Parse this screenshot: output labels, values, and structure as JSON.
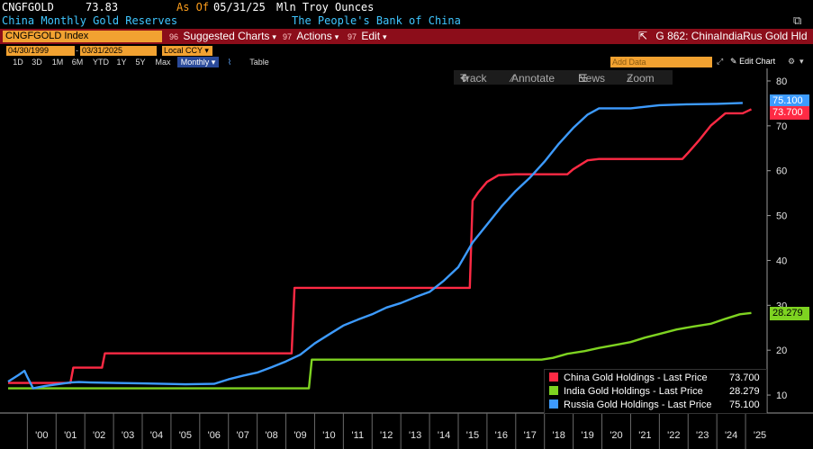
{
  "header": {
    "ticker": "CNGFGOLD",
    "last_value": "73.83",
    "asof_label": "As Of",
    "asof_date": "05/31/25",
    "units": "Mln Troy Ounces",
    "description": "China Monthly Gold Reserves",
    "source": "The People's Bank of China"
  },
  "menubar": {
    "index_label": "CNGFGOLD Index",
    "suggested": "Suggested Charts",
    "suggested_num": "96",
    "actions": "Actions",
    "actions_num": "97",
    "edit": "Edit",
    "chart_title": "G 862: ChinaIndiaRus Gold Hld"
  },
  "controls": {
    "start_date": "04/30/1999",
    "end_date": "03/31/2025",
    "currency": "Local CCY",
    "periods": [
      "1D",
      "3D",
      "1M",
      "6M",
      "YTD",
      "1Y",
      "5Y",
      "Max"
    ],
    "frequency": "Monthly",
    "table": "Table",
    "add_data": "Add Data",
    "edit_chart": "Edit Chart"
  },
  "toolbar": {
    "track": "Track",
    "annotate": "Annotate",
    "news": "News",
    "zoom": "Zoom"
  },
  "colors": {
    "china": "#ff2a44",
    "india": "#7ed321",
    "russia": "#3d9bff",
    "background": "#000000"
  },
  "legend": {
    "china": "China Gold Holdings - Last Price",
    "china_value": "73.700",
    "india": "India Gold Holdings - Last Price",
    "india_value": "28.279",
    "russia": "Russia Gold Holdings - Last Price",
    "russia_value": "75.100"
  },
  "chart_data": {
    "type": "line",
    "x_ticks": [
      "'00",
      "'01",
      "'02",
      "'03",
      "'04",
      "'05",
      "'06",
      "'07",
      "'08",
      "'09",
      "'10",
      "'11",
      "'12",
      "'13",
      "'14",
      "'15",
      "'16",
      "'17",
      "'18",
      "'19",
      "'20",
      "'21",
      "'22",
      "'23",
      "'24",
      "'25"
    ],
    "xlim": [
      1999.33,
      2025.75
    ],
    "ylim": [
      6,
      82
    ],
    "y_ticks": [
      10,
      20,
      30,
      40,
      50,
      60,
      70,
      80
    ],
    "grid": false,
    "legend_position": "bottom-right",
    "series": [
      {
        "name": "China Gold Holdings - Last Price",
        "key": "china",
        "last": 73.7,
        "points": [
          [
            1999.33,
            12.7
          ],
          [
            2001.5,
            12.7
          ],
          [
            2001.6,
            16.1
          ],
          [
            2002.6,
            16.1
          ],
          [
            2002.7,
            19.3
          ],
          [
            2009.2,
            19.3
          ],
          [
            2009.3,
            33.9
          ],
          [
            2015.4,
            33.9
          ],
          [
            2015.5,
            53.3
          ],
          [
            2015.7,
            55.2
          ],
          [
            2016.0,
            57.5
          ],
          [
            2016.4,
            59.0
          ],
          [
            2017.0,
            59.2
          ],
          [
            2018.8,
            59.2
          ],
          [
            2019.0,
            60.3
          ],
          [
            2019.5,
            62.3
          ],
          [
            2019.9,
            62.6
          ],
          [
            2022.8,
            62.6
          ],
          [
            2023.0,
            64.0
          ],
          [
            2023.4,
            66.9
          ],
          [
            2023.8,
            70.1
          ],
          [
            2024.3,
            72.8
          ],
          [
            2024.9,
            72.8
          ],
          [
            2025.2,
            73.7
          ]
        ]
      },
      {
        "name": "India Gold Holdings - Last Price",
        "key": "india",
        "last": 28.279,
        "points": [
          [
            1999.33,
            11.5
          ],
          [
            2009.8,
            11.5
          ],
          [
            2009.9,
            17.9
          ],
          [
            2017.9,
            17.9
          ],
          [
            2018.3,
            18.3
          ],
          [
            2018.8,
            19.2
          ],
          [
            2019.4,
            19.8
          ],
          [
            2019.9,
            20.5
          ],
          [
            2020.5,
            21.2
          ],
          [
            2021.0,
            21.8
          ],
          [
            2021.5,
            22.8
          ],
          [
            2022.0,
            23.6
          ],
          [
            2022.6,
            24.6
          ],
          [
            2023.2,
            25.3
          ],
          [
            2023.8,
            25.9
          ],
          [
            2024.3,
            27.0
          ],
          [
            2024.8,
            28.0
          ],
          [
            2025.2,
            28.3
          ]
        ]
      },
      {
        "name": "Russia Gold Holdings - Last Price",
        "key": "russia",
        "last": 75.1,
        "points": [
          [
            1999.33,
            13.0
          ],
          [
            1999.7,
            14.5
          ],
          [
            1999.9,
            15.4
          ],
          [
            2000.0,
            14.0
          ],
          [
            2000.2,
            11.5
          ],
          [
            2000.6,
            12.0
          ],
          [
            2001.5,
            12.8
          ],
          [
            2001.8,
            12.9
          ],
          [
            2002.2,
            12.8
          ],
          [
            2004.0,
            12.6
          ],
          [
            2005.5,
            12.4
          ],
          [
            2006.5,
            12.5
          ],
          [
            2007.0,
            13.5
          ],
          [
            2007.5,
            14.3
          ],
          [
            2008.0,
            15.0
          ],
          [
            2008.5,
            16.2
          ],
          [
            2009.0,
            17.5
          ],
          [
            2009.5,
            19.0
          ],
          [
            2010.0,
            21.5
          ],
          [
            2010.5,
            23.5
          ],
          [
            2011.0,
            25.5
          ],
          [
            2011.5,
            26.8
          ],
          [
            2012.0,
            28.0
          ],
          [
            2012.5,
            29.5
          ],
          [
            2013.0,
            30.5
          ],
          [
            2013.5,
            31.8
          ],
          [
            2014.0,
            33.0
          ],
          [
            2014.5,
            35.5
          ],
          [
            2015.0,
            38.5
          ],
          [
            2015.5,
            44.0
          ],
          [
            2016.0,
            48.0
          ],
          [
            2016.5,
            52.0
          ],
          [
            2017.0,
            55.5
          ],
          [
            2017.5,
            58.5
          ],
          [
            2018.0,
            62.0
          ],
          [
            2018.5,
            66.0
          ],
          [
            2019.0,
            69.5
          ],
          [
            2019.5,
            72.5
          ],
          [
            2019.9,
            73.9
          ],
          [
            2021.0,
            73.9
          ],
          [
            2022.0,
            74.6
          ],
          [
            2023.0,
            74.8
          ],
          [
            2024.0,
            74.9
          ],
          [
            2024.9,
            75.1
          ]
        ]
      }
    ]
  }
}
